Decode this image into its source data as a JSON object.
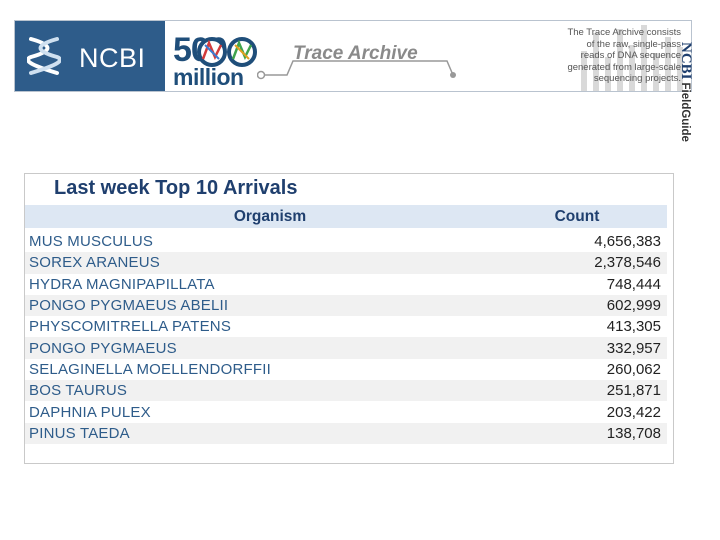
{
  "banner": {
    "logo_text": "NCBI",
    "badge_number": "500",
    "badge_word": "million",
    "title": "Trace Archive",
    "description_lines": [
      "The Trace Archive consists",
      "of the raw, single-pass",
      "reads of DNA sequence",
      "generated from large-scale",
      "sequencing projects."
    ],
    "brand_color": "#2e5c8a"
  },
  "side_label": {
    "brand": "NCBI",
    "product": "FieldGuide"
  },
  "table": {
    "title": "Last week Top 10 Arrivals",
    "headers": {
      "organism": "Organism",
      "count": "Count"
    },
    "rows": [
      {
        "organism": "MUS MUSCULUS",
        "count": "4,656,383"
      },
      {
        "organism": "SOREX ARANEUS",
        "count": "2,378,546"
      },
      {
        "organism": "HYDRA MAGNIPAPILLATA",
        "count": "748,444"
      },
      {
        "organism": "PONGO PYGMAEUS ABELII",
        "count": "602,999"
      },
      {
        "organism": "PHYSCOMITRELLA PATENS",
        "count": "413,305"
      },
      {
        "organism": "PONGO PYGMAEUS",
        "count": "332,957"
      },
      {
        "organism": "SELAGINELLA MOELLENDORFFII",
        "count": "260,062"
      },
      {
        "organism": "BOS TAURUS",
        "count": "251,871"
      },
      {
        "organism": "DAPHNIA PULEX",
        "count": "203,422"
      },
      {
        "organism": "PINUS TAEDA",
        "count": "138,708"
      }
    ]
  }
}
